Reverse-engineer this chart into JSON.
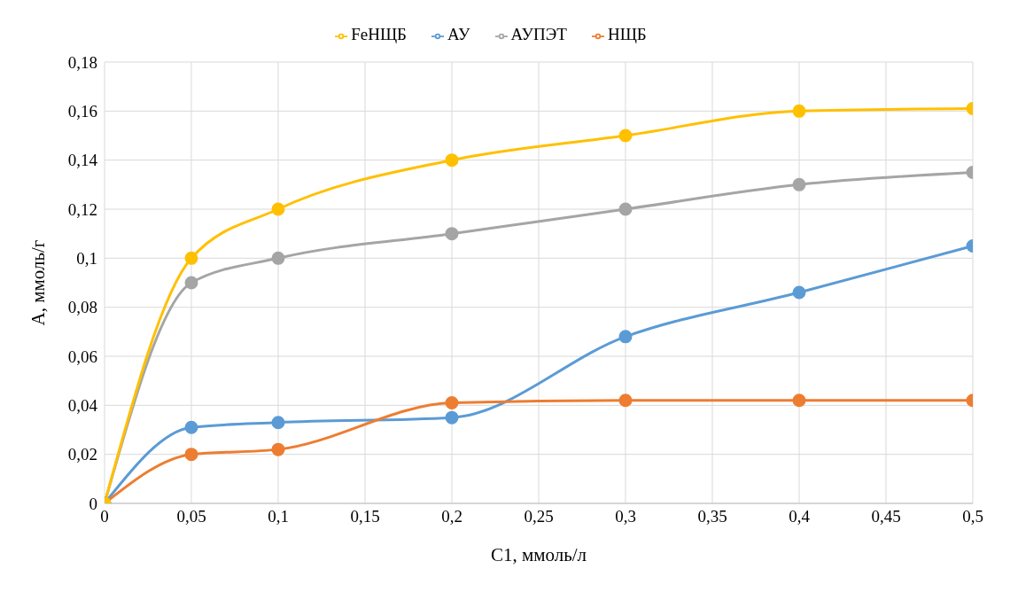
{
  "chart_data": {
    "type": "line",
    "xlabel": "С1, ммоль/л",
    "ylabel": "А, ммоль/г",
    "x": [
      0,
      0.05,
      0.1,
      0.2,
      0.3,
      0.4,
      0.5
    ],
    "series": [
      {
        "name": "АУ",
        "color": "#5b9bd5",
        "values": [
          0,
          0.031,
          0.033,
          0.035,
          0.068,
          0.086,
          0.105
        ]
      },
      {
        "name": "НЩБ",
        "color": "#ed7d31",
        "values": [
          0,
          0.02,
          0.022,
          0.041,
          0.042,
          0.042,
          0.042
        ]
      },
      {
        "name": "АУПЭТ",
        "color": "#a5a5a5",
        "values": [
          0,
          0.09,
          0.1,
          0.11,
          0.12,
          0.13,
          0.135
        ]
      },
      {
        "name": "FeНЩБ",
        "color": "#ffc000",
        "values": [
          0,
          0.1,
          0.12,
          0.14,
          0.15,
          0.16,
          0.161
        ]
      }
    ],
    "xlim": [
      0,
      0.5
    ],
    "xticks": [
      0,
      {
        "value": 0.05,
        "label": "0,05"
      },
      {
        "value": 0.1,
        "label": "0,1"
      },
      {
        "value": 0.15,
        "label": "0,15"
      },
      {
        "value": 0.2,
        "label": "0,2"
      },
      {
        "value": 0.25,
        "label": "0,25"
      },
      {
        "value": 0.3,
        "label": "0,3"
      },
      {
        "value": 0.35,
        "label": "0,35"
      },
      {
        "value": 0.4,
        "label": "0,4"
      },
      {
        "value": 0.45,
        "label": "0,45"
      },
      {
        "value": 0.5,
        "label": "0,5"
      }
    ],
    "ylim": [
      0,
      0.18
    ],
    "yticks": [
      0,
      {
        "value": 0.02,
        "label": "0,02"
      },
      {
        "value": 0.04,
        "label": "0,04"
      },
      {
        "value": 0.06,
        "label": "0,06"
      },
      {
        "value": 0.08,
        "label": "0,08"
      },
      {
        "value": 0.1,
        "label": "0,1"
      },
      {
        "value": 0.12,
        "label": "0,12"
      },
      {
        "value": 0.14,
        "label": "0,14"
      },
      {
        "value": 0.16,
        "label": "0,16"
      },
      {
        "value": 0.18,
        "label": "0,18"
      }
    ],
    "grid": true,
    "legend": "top",
    "marker": "circle",
    "line_style": "solid"
  }
}
